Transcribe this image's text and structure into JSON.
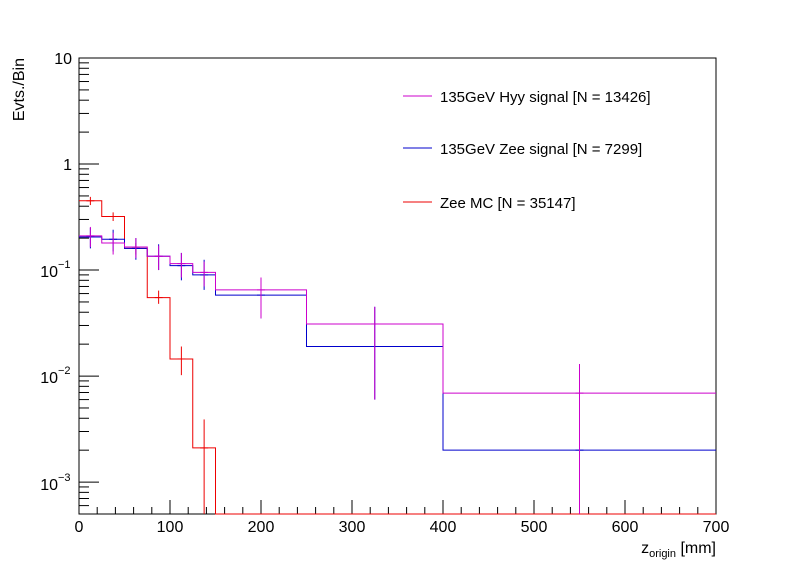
{
  "chart_data": {
    "type": "histogram",
    "xlabel_main": "z",
    "xlabel_sub": "origin",
    "xlabel_unit": " [mm]",
    "ylabel": "Evts./Bin",
    "xlim": [
      0,
      700
    ],
    "ylim": [
      0.0005,
      10
    ],
    "yscale": "log",
    "x_ticks": [
      "0",
      "100",
      "200",
      "300",
      "400",
      "500",
      "600",
      "700"
    ],
    "y_tick_labels": {
      "y10": "10",
      "y1": "1",
      "y01_base": "10",
      "y01_exp": "−1",
      "y001_base": "10",
      "y001_exp": "−2",
      "y0001_base": "10",
      "y0001_exp": "−3"
    },
    "legend_position": "top-right",
    "series": [
      {
        "name": "135GeV Hyy signal [N = 13426]",
        "color": "#cc00cc",
        "edges": [
          0,
          25,
          50,
          75,
          100,
          125,
          150,
          250,
          400,
          700
        ],
        "values": [
          0.21,
          0.18,
          0.165,
          0.135,
          0.115,
          0.095,
          0.065,
          0.031,
          0.0069
        ],
        "errors": [
          {
            "x": 12.5,
            "y": 0.21,
            "lo": 0.165,
            "hi": 0.255
          },
          {
            "x": 37.5,
            "y": 0.18,
            "lo": 0.14,
            "hi": 0.225
          },
          {
            "x": 62.5,
            "y": 0.165,
            "lo": 0.13,
            "hi": 0.2
          },
          {
            "x": 87.5,
            "y": 0.135,
            "lo": 0.1,
            "hi": 0.17
          },
          {
            "x": 112.5,
            "y": 0.115,
            "lo": 0.085,
            "hi": 0.145
          },
          {
            "x": 137.5,
            "y": 0.095,
            "lo": 0.07,
            "hi": 0.12
          },
          {
            "x": 200,
            "y": 0.065,
            "lo": 0.035,
            "hi": 0.085
          },
          {
            "x": 325,
            "y": 0.031,
            "lo": 0.006,
            "hi": 0.045
          },
          {
            "x": 550,
            "y": 0.0069,
            "lo": 0.0005,
            "hi": 0.013
          }
        ]
      },
      {
        "name": "135GeV Zee signal [N = 7299]",
        "color": "#0000cc",
        "edges": [
          0,
          25,
          50,
          75,
          100,
          125,
          150,
          250,
          400,
          700
        ],
        "values": [
          0.205,
          0.195,
          0.16,
          0.135,
          0.11,
          0.09,
          0.058,
          0.019,
          0.002
        ],
        "errors": [
          {
            "x": 12.5,
            "y": 0.205,
            "lo": 0.16,
            "hi": 0.25
          },
          {
            "x": 37.5,
            "y": 0.195,
            "lo": 0.15,
            "hi": 0.24
          },
          {
            "x": 62.5,
            "y": 0.16,
            "lo": 0.125,
            "hi": 0.2
          },
          {
            "x": 87.5,
            "y": 0.135,
            "lo": 0.1,
            "hi": 0.175
          },
          {
            "x": 112.5,
            "y": 0.11,
            "lo": 0.08,
            "hi": 0.145
          },
          {
            "x": 137.5,
            "y": 0.09,
            "lo": 0.065,
            "hi": 0.125
          },
          {
            "x": 200,
            "y": 0.058,
            "lo": 0.035,
            "hi": 0.085
          },
          {
            "x": 325,
            "y": 0.019,
            "lo": 0.006,
            "hi": 0.045
          },
          {
            "x": 550,
            "y": 0.002,
            "lo": 0.0005,
            "hi": 0.006
          }
        ]
      },
      {
        "name": "Zee MC [N = 35147]",
        "color": "#ee0000",
        "edges": [
          0,
          25,
          50,
          75,
          100,
          125,
          137.5,
          150,
          700
        ],
        "values": [
          0.45,
          0.32,
          0.16,
          0.055,
          0.0145,
          0.0021,
          0.0021,
          0.0005
        ],
        "errors": [
          {
            "x": 12.5,
            "y": 0.45,
            "lo": 0.41,
            "hi": 0.49
          },
          {
            "x": 37.5,
            "y": 0.32,
            "lo": 0.29,
            "hi": 0.35
          },
          {
            "x": 62.5,
            "y": 0.16,
            "lo": 0.14,
            "hi": 0.18
          },
          {
            "x": 87.5,
            "y": 0.055,
            "lo": 0.048,
            "hi": 0.064
          },
          {
            "x": 112.5,
            "y": 0.0145,
            "lo": 0.0102,
            "hi": 0.019
          },
          {
            "x": 137.5,
            "y": 0.0021,
            "lo": 0.0005,
            "hi": 0.0039
          }
        ]
      }
    ]
  }
}
